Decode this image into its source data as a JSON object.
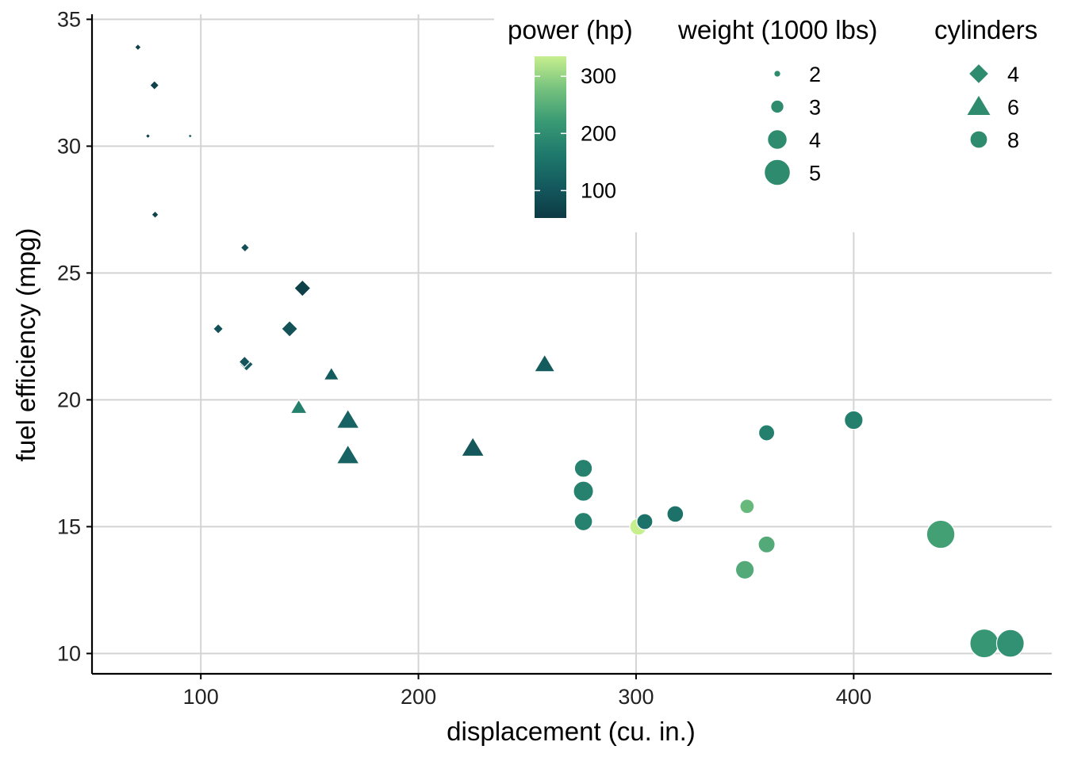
{
  "chart_data": {
    "type": "scatter",
    "xlabel": "displacement (cu. in.)",
    "ylabel": "fuel efficiency (mpg)",
    "xlim": [
      50,
      491
    ],
    "ylim": [
      9.2,
      35.2
    ],
    "xticks": [
      100,
      200,
      300,
      400
    ],
    "yticks": [
      10,
      15,
      20,
      25,
      30,
      35
    ],
    "grid": true,
    "legend_placement": "top-right",
    "legends": {
      "color": {
        "title": "power (hp)",
        "range": [
          52,
          335
        ],
        "ticks": [
          100,
          200,
          300
        ],
        "colors": [
          "#0d3a45",
          "#145a5e",
          "#1f7a6c",
          "#3a9a74",
          "#76c27e",
          "#c6ef8e"
        ]
      },
      "size": {
        "title": "weight (1000 lbs)",
        "labels": [
          "2",
          "3",
          "4",
          "5"
        ],
        "values": [
          2,
          3,
          4,
          5
        ]
      },
      "shape": {
        "title": "cylinders",
        "labels": [
          "4",
          "6",
          "8"
        ],
        "shapes": [
          "diamond",
          "triangle",
          "circle"
        ]
      }
    },
    "points": [
      {
        "x": 160,
        "y": 21.0,
        "hp": 110,
        "wt": 2.62,
        "cyl": 6
      },
      {
        "x": 160,
        "y": 21.0,
        "hp": 110,
        "wt": 2.875,
        "cyl": 6
      },
      {
        "x": 108,
        "y": 22.8,
        "hp": 93,
        "wt": 2.32,
        "cyl": 4
      },
      {
        "x": 258,
        "y": 21.4,
        "hp": 110,
        "wt": 3.215,
        "cyl": 6
      },
      {
        "x": 360,
        "y": 18.7,
        "hp": 175,
        "wt": 3.44,
        "cyl": 8
      },
      {
        "x": 225,
        "y": 18.1,
        "hp": 105,
        "wt": 3.46,
        "cyl": 6
      },
      {
        "x": 360,
        "y": 14.3,
        "hp": 245,
        "wt": 3.57,
        "cyl": 8
      },
      {
        "x": 146.7,
        "y": 24.4,
        "hp": 62,
        "wt": 3.19,
        "cyl": 4
      },
      {
        "x": 140.8,
        "y": 22.8,
        "hp": 95,
        "wt": 3.15,
        "cyl": 4
      },
      {
        "x": 167.6,
        "y": 19.2,
        "hp": 123,
        "wt": 3.44,
        "cyl": 6
      },
      {
        "x": 167.6,
        "y": 17.8,
        "hp": 123,
        "wt": 3.44,
        "cyl": 6
      },
      {
        "x": 275.8,
        "y": 16.4,
        "hp": 180,
        "wt": 4.07,
        "cyl": 8
      },
      {
        "x": 275.8,
        "y": 17.3,
        "hp": 180,
        "wt": 3.73,
        "cyl": 8
      },
      {
        "x": 275.8,
        "y": 15.2,
        "hp": 180,
        "wt": 3.78,
        "cyl": 8
      },
      {
        "x": 472,
        "y": 10.4,
        "hp": 205,
        "wt": 5.25,
        "cyl": 8
      },
      {
        "x": 460,
        "y": 10.4,
        "hp": 215,
        "wt": 5.424,
        "cyl": 8
      },
      {
        "x": 440,
        "y": 14.7,
        "hp": 230,
        "wt": 5.345,
        "cyl": 8
      },
      {
        "x": 78.7,
        "y": 32.4,
        "hp": 66,
        "wt": 2.2,
        "cyl": 4
      },
      {
        "x": 75.7,
        "y": 30.4,
        "hp": 52,
        "wt": 1.615,
        "cyl": 4
      },
      {
        "x": 71.1,
        "y": 33.9,
        "hp": 65,
        "wt": 1.835,
        "cyl": 4
      },
      {
        "x": 120.1,
        "y": 21.5,
        "hp": 97,
        "wt": 2.465,
        "cyl": 4
      },
      {
        "x": 318,
        "y": 15.5,
        "hp": 150,
        "wt": 3.52,
        "cyl": 8
      },
      {
        "x": 304,
        "y": 15.2,
        "hp": 150,
        "wt": 3.435,
        "cyl": 8
      },
      {
        "x": 350,
        "y": 13.3,
        "hp": 245,
        "wt": 3.84,
        "cyl": 8
      },
      {
        "x": 400,
        "y": 19.2,
        "hp": 175,
        "wt": 3.845,
        "cyl": 8
      },
      {
        "x": 79,
        "y": 27.3,
        "hp": 66,
        "wt": 1.935,
        "cyl": 4
      },
      {
        "x": 120.3,
        "y": 26.0,
        "hp": 91,
        "wt": 2.14,
        "cyl": 4
      },
      {
        "x": 95.1,
        "y": 30.4,
        "hp": 113,
        "wt": 1.513,
        "cyl": 4
      },
      {
        "x": 351,
        "y": 15.8,
        "hp": 264,
        "wt": 3.17,
        "cyl": 8
      },
      {
        "x": 145,
        "y": 19.7,
        "hp": 175,
        "wt": 2.77,
        "cyl": 6
      },
      {
        "x": 301,
        "y": 15.0,
        "hp": 335,
        "wt": 3.57,
        "cyl": 8
      },
      {
        "x": 121,
        "y": 21.4,
        "hp": 109,
        "wt": 2.78,
        "cyl": 4
      }
    ]
  }
}
